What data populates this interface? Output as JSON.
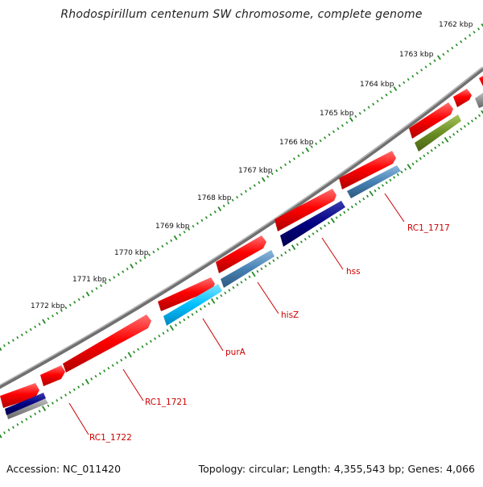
{
  "title": "Rhodospirillum centenum SW chromosome, complete genome",
  "accession": "Accession: NC_011420",
  "summary": "Topology: circular; Length: 4,355,543 bp; Genes: 4,066",
  "scale_labels": [
    "1762 kbp",
    "1763 kbp",
    "1764 kbp",
    "1765 kbp",
    "1766 kbp",
    "1767 kbp",
    "1768 kbp",
    "1769 kbp",
    "1770 kbp",
    "1771 kbp",
    "1772 kbp"
  ],
  "gene_labels": [
    "RC1_1717",
    "hss",
    "hisZ",
    "purA",
    "RC1_1721",
    "RC1_1722"
  ],
  "colors": {
    "forward_gene": "#ff0000",
    "backbone": "#808080",
    "tick": "#228b22",
    "label": "#cc0000",
    "steelblue": "#4682b4",
    "navy": "#000080",
    "deepskyblue": "#00bfff",
    "olive": "#6b8e23",
    "gray": "#909090"
  }
}
